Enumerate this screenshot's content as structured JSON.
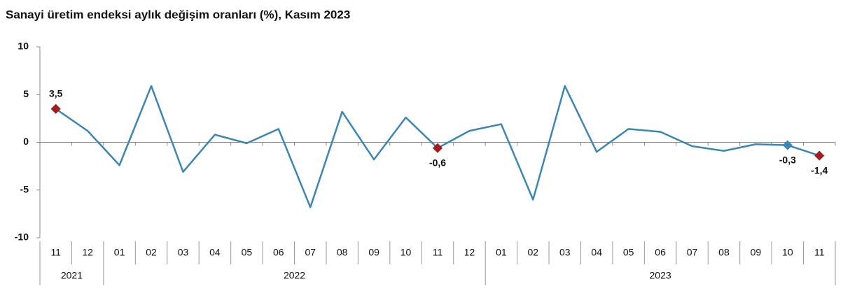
{
  "chart_data": {
    "type": "line",
    "title": "Sanayi üretim endeksi aylık değişim oranları (%), Kasım 2023",
    "categories": [
      "11",
      "12",
      "01",
      "02",
      "03",
      "04",
      "05",
      "06",
      "07",
      "08",
      "09",
      "10",
      "11",
      "12",
      "01",
      "02",
      "03",
      "04",
      "05",
      "06",
      "07",
      "08",
      "09",
      "10",
      "11"
    ],
    "x_groups": [
      {
        "label": "2021",
        "count": 2
      },
      {
        "label": "2022",
        "count": 12
      },
      {
        "label": "2023",
        "count": 11
      }
    ],
    "values": [
      3.5,
      1.2,
      -2.4,
      5.9,
      -3.1,
      0.8,
      -0.1,
      1.4,
      -6.8,
      3.2,
      -1.8,
      2.6,
      -0.6,
      1.2,
      1.9,
      -6.0,
      5.9,
      -1.0,
      1.4,
      1.1,
      -0.4,
      -0.9,
      -0.2,
      -0.3,
      -1.4
    ],
    "value_labels": [
      "3,5",
      null,
      null,
      null,
      null,
      null,
      null,
      null,
      null,
      null,
      null,
      null,
      "-0,6",
      null,
      null,
      null,
      null,
      null,
      null,
      null,
      null,
      null,
      null,
      "-0,3",
      "-1,4"
    ],
    "marker_colors": [
      "#a31a1f",
      null,
      null,
      null,
      null,
      null,
      null,
      null,
      null,
      null,
      null,
      null,
      "#a31a1f",
      null,
      null,
      null,
      null,
      null,
      null,
      null,
      null,
      null,
      null,
      "#3a86b4",
      "#a31a1f"
    ],
    "color": "#3a86b4",
    "ylim": [
      -10,
      10
    ],
    "yticks": [
      10,
      5,
      0,
      -5,
      -10
    ]
  }
}
